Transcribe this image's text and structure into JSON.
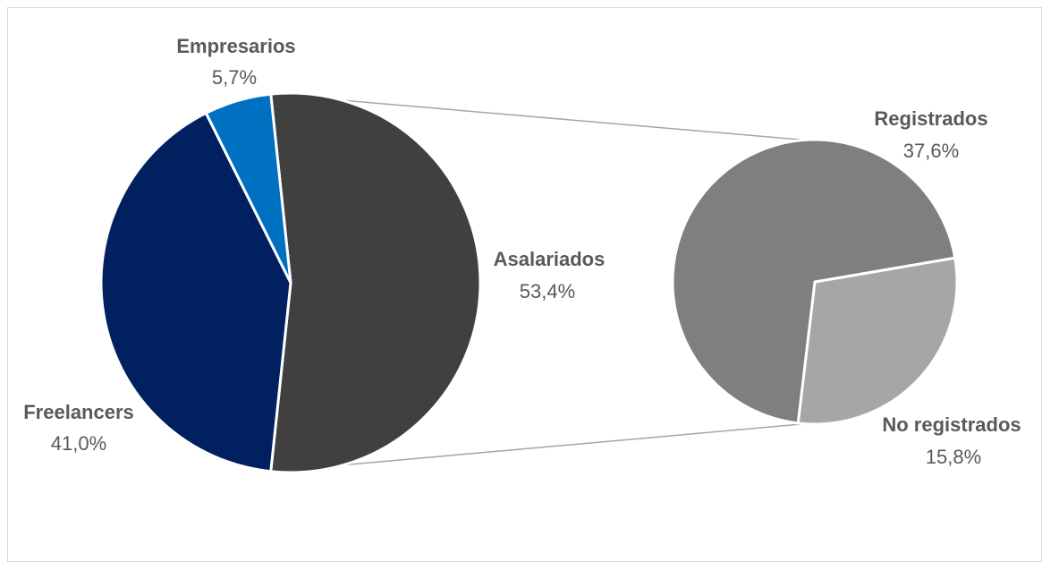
{
  "chart_data": {
    "type": "pie",
    "variant": "bar-of-pie",
    "main_pie": {
      "slices": [
        {
          "name": "Asalariados",
          "value": 53.4,
          "label": "53,4%",
          "color": "#404040"
        },
        {
          "name": "Freelancers",
          "value": 41.0,
          "label": "41,0%",
          "color": "#002060"
        },
        {
          "name": "Empresarios",
          "value": 5.7,
          "label": "5,7%",
          "color": "#0070c0"
        }
      ]
    },
    "secondary_pie": {
      "breakdown_of": "Asalariados",
      "slices": [
        {
          "name": "Registrados",
          "value": 37.6,
          "label": "37,6%",
          "color": "#7f7f7f"
        },
        {
          "name": "No registrados",
          "value": 15.8,
          "label": "15,8%",
          "color": "#a6a6a6"
        }
      ]
    },
    "connector_color": "#a6a6a6",
    "label_color": "#595959"
  }
}
